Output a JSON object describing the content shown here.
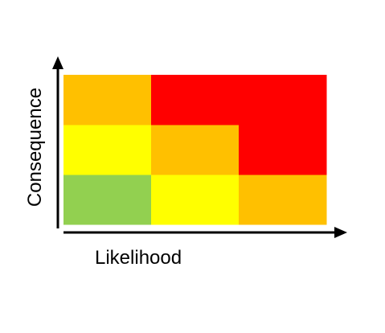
{
  "chart_data": {
    "type": "heatmap",
    "xlabel": "Likelihood",
    "ylabel": "Consequence",
    "x_levels": 3,
    "y_levels": 3,
    "colors": {
      "green": "#92d050",
      "yellow": "#ffff00",
      "orange": "#ffc000",
      "red": "#ff0000",
      "axis": "#000000"
    },
    "grid": false,
    "cells": [
      {
        "likelihood": 1,
        "consequence": 1,
        "color": "green"
      },
      {
        "likelihood": 2,
        "consequence": 1,
        "color": "yellow"
      },
      {
        "likelihood": 3,
        "consequence": 1,
        "color": "orange"
      },
      {
        "likelihood": 1,
        "consequence": 2,
        "color": "yellow"
      },
      {
        "likelihood": 2,
        "consequence": 2,
        "color": "orange"
      },
      {
        "likelihood": 3,
        "consequence": 2,
        "color": "red"
      },
      {
        "likelihood": 1,
        "consequence": 3,
        "color": "orange"
      },
      {
        "likelihood": 2,
        "consequence": 3,
        "color": "red"
      },
      {
        "likelihood": 3,
        "consequence": 3,
        "color": "red"
      }
    ]
  }
}
